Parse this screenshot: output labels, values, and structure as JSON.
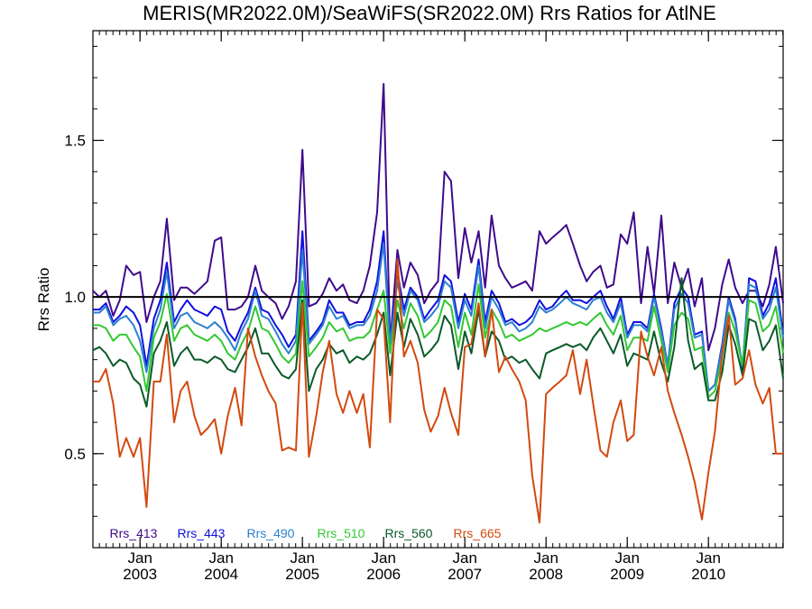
{
  "chart_data": {
    "type": "line",
    "title": "MERIS(MR2022.0M)/SeaWiFS(SR2022.0M)  Rrs Ratios for AtlNE",
    "xlabel": "",
    "ylabel": "Rrs Ratio",
    "xlim": [
      2002.42,
      2010.92
    ],
    "ylim": [
      0.2,
      1.85
    ],
    "grid": false,
    "legend_position": "bottom-left",
    "reference_line": {
      "y": 1.0,
      "color": "#000000"
    },
    "x_ticks": [
      {
        "value": 2003.0,
        "month": "Jan",
        "year": "2003"
      },
      {
        "value": 2004.0,
        "month": "Jan",
        "year": "2004"
      },
      {
        "value": 2005.0,
        "month": "Jan",
        "year": "2005"
      },
      {
        "value": 2006.0,
        "month": "Jan",
        "year": "2006"
      },
      {
        "value": 2007.0,
        "month": "Jan",
        "year": "2007"
      },
      {
        "value": 2008.0,
        "month": "Jan",
        "year": "2008"
      },
      {
        "value": 2009.0,
        "month": "Jan",
        "year": "2009"
      },
      {
        "value": 2010.0,
        "month": "Jan",
        "year": "2010"
      }
    ],
    "y_ticks": [
      {
        "value": 0.5,
        "label": "0.5"
      },
      {
        "value": 1.0,
        "label": "1.0"
      },
      {
        "value": 1.5,
        "label": "1.5"
      }
    ],
    "x": [
      2002.42,
      2002.5,
      2002.58,
      2002.67,
      2002.75,
      2002.83,
      2002.92,
      2003.0,
      2003.08,
      2003.17,
      2003.25,
      2003.33,
      2003.42,
      2003.5,
      2003.58,
      2003.67,
      2003.75,
      2003.83,
      2003.92,
      2004.0,
      2004.08,
      2004.17,
      2004.25,
      2004.33,
      2004.42,
      2004.5,
      2004.58,
      2004.67,
      2004.75,
      2004.83,
      2004.92,
      2005.0,
      2005.08,
      2005.17,
      2005.25,
      2005.33,
      2005.42,
      2005.5,
      2005.58,
      2005.67,
      2005.75,
      2005.83,
      2005.92,
      2006.0,
      2006.08,
      2006.17,
      2006.25,
      2006.33,
      2006.42,
      2006.5,
      2006.58,
      2006.67,
      2006.75,
      2006.83,
      2006.92,
      2007.0,
      2007.08,
      2007.17,
      2007.25,
      2007.33,
      2007.42,
      2007.5,
      2007.58,
      2007.67,
      2007.75,
      2007.83,
      2007.92,
      2008.0,
      2008.08,
      2008.17,
      2008.25,
      2008.33,
      2008.42,
      2008.5,
      2008.58,
      2008.67,
      2008.75,
      2008.83,
      2008.92,
      2009.0,
      2009.08,
      2009.17,
      2009.25,
      2009.33,
      2009.42,
      2009.5,
      2009.58,
      2009.67,
      2009.75,
      2009.83,
      2009.92,
      2010.0,
      2010.08,
      2010.17,
      2010.25,
      2010.33,
      2010.42,
      2010.5,
      2010.58,
      2010.67,
      2010.75,
      2010.83,
      2010.92
    ],
    "series": [
      {
        "name": "Rrs_413",
        "color": "#3f0a8c",
        "values": [
          1.02,
          1.0,
          1.02,
          0.94,
          0.99,
          1.1,
          1.07,
          1.08,
          0.92,
          1.0,
          1.05,
          1.25,
          0.99,
          1.03,
          1.03,
          1.01,
          1.03,
          1.05,
          1.18,
          1.19,
          0.96,
          0.96,
          0.97,
          1.0,
          1.1,
          1.02,
          1.0,
          0.98,
          0.93,
          0.97,
          1.05,
          1.47,
          0.97,
          0.98,
          1.01,
          1.06,
          1.02,
          1.04,
          0.99,
          0.98,
          1.02,
          1.1,
          1.27,
          1.68,
          0.85,
          1.15,
          1.03,
          1.11,
          1.07,
          0.98,
          1.02,
          1.05,
          1.4,
          1.37,
          1.06,
          1.22,
          1.11,
          1.21,
          1.03,
          1.26,
          1.1,
          1.06,
          1.03,
          1.04,
          1.05,
          1.02,
          1.21,
          1.17,
          1.19,
          1.21,
          1.23,
          1.17,
          1.1,
          1.05,
          1.08,
          1.1,
          1.03,
          1.04,
          1.2,
          1.17,
          1.27,
          0.98,
          1.16,
          1.01,
          1.26,
          0.98,
          1.11,
          1.03,
          1.09,
          0.97,
          1.06,
          0.83,
          0.9,
          1.04,
          1.12,
          1.03,
          0.98,
          1.02,
          1.02,
          0.97,
          1.04,
          1.16,
          0.98
        ]
      },
      {
        "name": "Rrs_443",
        "color": "#1010e0",
        "values": [
          0.96,
          0.96,
          0.98,
          0.92,
          0.94,
          0.97,
          0.95,
          0.91,
          0.78,
          0.93,
          0.99,
          1.11,
          0.92,
          0.96,
          0.99,
          0.96,
          0.95,
          0.94,
          0.97,
          0.96,
          0.89,
          0.86,
          0.91,
          0.95,
          1.03,
          0.96,
          0.95,
          0.91,
          0.88,
          0.84,
          0.88,
          1.21,
          0.86,
          0.89,
          0.92,
          0.99,
          0.95,
          0.95,
          0.91,
          0.92,
          0.92,
          0.96,
          1.05,
          1.21,
          0.85,
          1.08,
          0.96,
          1.03,
          1.0,
          0.93,
          0.96,
          0.99,
          1.07,
          1.05,
          0.92,
          1.01,
          0.96,
          1.12,
          0.92,
          1.02,
          0.98,
          0.92,
          0.93,
          0.91,
          0.92,
          0.94,
          0.99,
          0.96,
          0.97,
          1.0,
          1.02,
          0.99,
          0.99,
          0.98,
          1.0,
          1.02,
          0.97,
          0.93,
          1.0,
          0.88,
          0.92,
          0.92,
          0.9,
          1.01,
          0.9,
          0.78,
          0.98,
          1.03,
          1.0,
          0.88,
          0.89,
          0.7,
          0.72,
          0.85,
          1.0,
          0.93,
          0.77,
          1.06,
          1.05,
          0.94,
          0.98,
          1.06,
          0.88
        ]
      },
      {
        "name": "Rrs_490",
        "color": "#2c80d0",
        "values": [
          0.95,
          0.95,
          0.97,
          0.91,
          0.93,
          0.94,
          0.91,
          0.86,
          0.76,
          0.9,
          0.96,
          1.08,
          0.9,
          0.94,
          0.95,
          0.92,
          0.91,
          0.9,
          0.92,
          0.9,
          0.87,
          0.83,
          0.89,
          0.93,
          1.02,
          0.94,
          0.93,
          0.89,
          0.85,
          0.82,
          0.86,
          1.15,
          0.85,
          0.88,
          0.91,
          0.97,
          0.93,
          0.94,
          0.9,
          0.91,
          0.91,
          0.94,
          1.02,
          1.17,
          0.85,
          1.05,
          0.94,
          1.02,
          0.99,
          0.92,
          0.94,
          0.97,
          1.05,
          1.03,
          0.9,
          0.99,
          0.94,
          1.1,
          0.9,
          1.0,
          0.96,
          0.91,
          0.92,
          0.89,
          0.9,
          0.92,
          0.97,
          0.95,
          0.96,
          0.98,
          1.0,
          0.98,
          0.97,
          0.96,
          0.99,
          1.0,
          0.95,
          0.92,
          0.98,
          0.87,
          0.91,
          0.91,
          0.89,
          1.0,
          0.89,
          0.78,
          0.96,
          1.01,
          0.98,
          0.87,
          0.88,
          0.7,
          0.72,
          0.84,
          0.99,
          0.92,
          0.78,
          1.04,
          1.03,
          0.93,
          0.96,
          1.03,
          0.87
        ]
      },
      {
        "name": "Rrs_510",
        "color": "#32c832",
        "values": [
          0.91,
          0.91,
          0.9,
          0.86,
          0.88,
          0.88,
          0.84,
          0.81,
          0.7,
          0.87,
          0.92,
          1.01,
          0.86,
          0.9,
          0.91,
          0.88,
          0.87,
          0.86,
          0.88,
          0.86,
          0.82,
          0.8,
          0.85,
          0.89,
          0.97,
          0.9,
          0.89,
          0.85,
          0.81,
          0.79,
          0.82,
          1.05,
          0.81,
          0.84,
          0.87,
          0.92,
          0.89,
          0.9,
          0.86,
          0.87,
          0.87,
          0.89,
          0.96,
          1.02,
          0.82,
          0.99,
          0.9,
          0.98,
          0.94,
          0.87,
          0.89,
          0.92,
          0.99,
          0.97,
          0.84,
          0.95,
          0.88,
          1.04,
          0.87,
          0.96,
          0.92,
          0.87,
          0.88,
          0.86,
          0.87,
          0.88,
          0.9,
          0.89,
          0.9,
          0.91,
          0.92,
          0.91,
          0.92,
          0.91,
          0.93,
          0.95,
          0.91,
          0.88,
          0.94,
          0.83,
          0.87,
          0.87,
          0.86,
          0.97,
          0.86,
          0.76,
          0.91,
          0.95,
          0.93,
          0.83,
          0.84,
          0.68,
          0.7,
          0.81,
          0.95,
          0.89,
          0.78,
          0.99,
          0.98,
          0.89,
          0.91,
          0.97,
          0.82
        ]
      },
      {
        "name": "Rrs_560",
        "color": "#0a5a28",
        "values": [
          0.83,
          0.84,
          0.82,
          0.78,
          0.8,
          0.79,
          0.74,
          0.72,
          0.65,
          0.82,
          0.86,
          0.92,
          0.78,
          0.82,
          0.84,
          0.8,
          0.8,
          0.79,
          0.81,
          0.8,
          0.77,
          0.76,
          0.8,
          0.84,
          0.9,
          0.82,
          0.82,
          0.78,
          0.75,
          0.74,
          0.77,
          0.99,
          0.7,
          0.77,
          0.8,
          0.85,
          0.82,
          0.83,
          0.79,
          0.81,
          0.8,
          0.82,
          0.88,
          0.95,
          0.75,
          0.95,
          0.84,
          0.93,
          0.88,
          0.81,
          0.83,
          0.86,
          0.94,
          0.91,
          0.77,
          0.89,
          0.82,
          0.96,
          0.81,
          0.89,
          0.86,
          0.8,
          0.81,
          0.79,
          0.8,
          0.77,
          0.74,
          0.82,
          0.83,
          0.84,
          0.85,
          0.84,
          0.85,
          0.83,
          0.87,
          0.9,
          0.86,
          0.82,
          0.88,
          0.78,
          0.82,
          0.81,
          0.8,
          0.89,
          0.79,
          0.73,
          0.84,
          1.06,
          0.86,
          0.77,
          0.79,
          0.67,
          0.67,
          0.76,
          0.91,
          0.85,
          0.75,
          0.93,
          0.92,
          0.83,
          0.86,
          0.91,
          0.74
        ]
      },
      {
        "name": "Rrs_665",
        "color": "#d24a0f",
        "values": [
          0.73,
          0.73,
          0.77,
          0.66,
          0.49,
          0.55,
          0.49,
          0.55,
          0.33,
          0.73,
          0.73,
          0.88,
          0.6,
          0.7,
          0.73,
          0.62,
          0.56,
          0.58,
          0.61,
          0.5,
          0.62,
          0.71,
          0.59,
          0.9,
          0.81,
          0.75,
          0.7,
          0.66,
          0.51,
          0.52,
          0.51,
          0.98,
          0.49,
          0.62,
          0.76,
          0.86,
          0.69,
          0.63,
          0.7,
          0.63,
          0.69,
          0.52,
          0.96,
          0.93,
          0.6,
          1.12,
          0.81,
          0.86,
          0.79,
          0.64,
          0.57,
          0.62,
          0.71,
          0.63,
          0.56,
          0.84,
          0.85,
          0.98,
          0.81,
          0.96,
          0.76,
          0.81,
          0.77,
          0.73,
          0.67,
          0.43,
          0.28,
          0.69,
          0.71,
          0.73,
          0.75,
          0.83,
          0.69,
          0.8,
          0.66,
          0.51,
          0.49,
          0.6,
          0.67,
          0.54,
          0.56,
          0.89,
          0.81,
          0.75,
          0.84,
          0.7,
          0.63,
          0.56,
          0.49,
          0.41,
          0.29,
          0.44,
          0.57,
          0.82,
          0.94,
          0.72,
          0.74,
          0.83,
          0.72,
          0.66,
          0.71,
          0.5,
          0.5
        ]
      }
    ]
  }
}
